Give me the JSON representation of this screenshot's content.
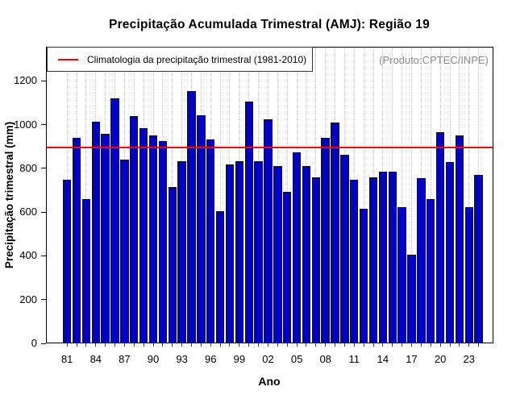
{
  "chart_data": {
    "type": "bar",
    "title": "Precipitação Acumulada Trimestral (AMJ): Região 19",
    "xlabel": "Ano",
    "ylabel": "Precipitação trimestral (mm)",
    "annotation": "(Produto:CPTEC/INPE)",
    "legend": {
      "label": "Climatologia da precipitação trimestral (1981-2010)",
      "position": "top-left"
    },
    "climatology": {
      "value": 890,
      "color": "#ff0000"
    },
    "bar_color": "#0000cc",
    "bar_border_color": "#141414",
    "grid": "vertical-dotted",
    "grid_color": "#c9c9c9",
    "annotation_color": "#8c8c8c",
    "ylim": [
      0,
      1350
    ],
    "yticks": [
      0,
      200,
      400,
      600,
      800,
      1000,
      1200
    ],
    "years": [
      1981,
      1982,
      1983,
      1984,
      1985,
      1986,
      1987,
      1988,
      1989,
      1990,
      1991,
      1992,
      1993,
      1994,
      1995,
      1996,
      1997,
      1998,
      1999,
      2000,
      2001,
      2002,
      2003,
      2004,
      2005,
      2006,
      2007,
      2008,
      2009,
      2010,
      2011,
      2012,
      2013,
      2014,
      2015,
      2016,
      2017,
      2018,
      2019,
      2020,
      2021,
      2022,
      2023,
      2024
    ],
    "values": [
      745,
      935,
      655,
      1010,
      955,
      1115,
      835,
      1035,
      980,
      945,
      920,
      710,
      830,
      1150,
      1040,
      930,
      600,
      815,
      830,
      1100,
      830,
      1020,
      805,
      690,
      870,
      805,
      755,
      935,
      1005,
      860,
      745,
      610,
      755,
      780,
      780,
      620,
      400,
      750,
      655,
      960,
      825,
      945,
      620,
      765
    ],
    "xtick_labels": [
      "81",
      "84",
      "87",
      "90",
      "93",
      "96",
      "99",
      "02",
      "05",
      "08",
      "11",
      "14",
      "17",
      "20",
      "23"
    ],
    "xtick_label_step": 3
  }
}
